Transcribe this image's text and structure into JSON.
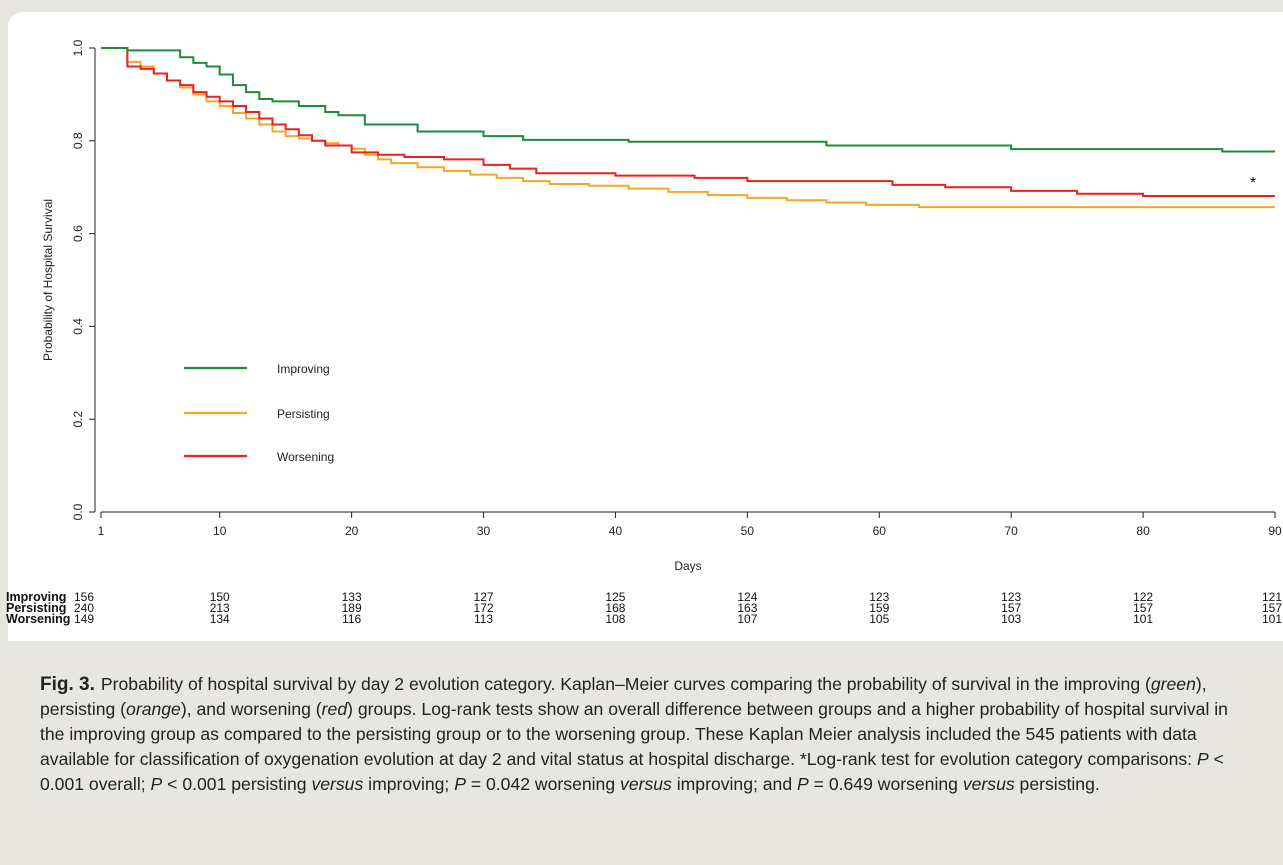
{
  "chart_data": {
    "type": "line",
    "xlabel": "Days",
    "ylabel": "Probability of Hospital Survival",
    "xlim": [
      1,
      90
    ],
    "ylim": [
      0,
      1
    ],
    "x_ticks": [
      1,
      10,
      20,
      30,
      40,
      50,
      60,
      70,
      80,
      90
    ],
    "y_ticks": [
      "0.0",
      "0.2",
      "0.4",
      "0.6",
      "0.8",
      "1.0"
    ],
    "legend_placement": "center-left",
    "annotation": "*",
    "series": [
      {
        "name": "Improving",
        "color": "#1e8a3c",
        "x": [
          1,
          3,
          7,
          8,
          9,
          10,
          11,
          12,
          13,
          14,
          16,
          18,
          19,
          21,
          25,
          30,
          33,
          41,
          56,
          70,
          86,
          90
        ],
        "y": [
          1.0,
          0.995,
          0.98,
          0.968,
          0.96,
          0.943,
          0.92,
          0.905,
          0.89,
          0.885,
          0.875,
          0.862,
          0.855,
          0.835,
          0.82,
          0.81,
          0.802,
          0.798,
          0.79,
          0.782,
          0.777,
          0.777
        ]
      },
      {
        "name": "Persisting",
        "color": "#f5a623",
        "x": [
          1,
          3,
          4,
          5,
          6,
          7,
          8,
          9,
          10,
          11,
          12,
          13,
          14,
          15,
          16,
          17,
          18,
          19,
          20,
          21,
          22,
          23,
          25,
          27,
          29,
          31,
          33,
          35,
          38,
          41,
          44,
          47,
          50,
          53,
          56,
          59,
          63,
          90
        ],
        "y": [
          1.0,
          0.97,
          0.96,
          0.945,
          0.93,
          0.915,
          0.9,
          0.885,
          0.875,
          0.86,
          0.848,
          0.835,
          0.82,
          0.81,
          0.805,
          0.8,
          0.795,
          0.79,
          0.783,
          0.77,
          0.76,
          0.752,
          0.743,
          0.735,
          0.727,
          0.72,
          0.713,
          0.707,
          0.703,
          0.697,
          0.69,
          0.683,
          0.677,
          0.672,
          0.667,
          0.662,
          0.657,
          0.657
        ]
      },
      {
        "name": "Worsening",
        "color": "#e8221e",
        "x": [
          1,
          3,
          4,
          5,
          6,
          7,
          8,
          9,
          10,
          11,
          12,
          13,
          14,
          15,
          16,
          17,
          18,
          20,
          22,
          24,
          27,
          30,
          32,
          34,
          40,
          46,
          50,
          61,
          65,
          70,
          75,
          80,
          90
        ],
        "y": [
          1.0,
          0.96,
          0.955,
          0.945,
          0.93,
          0.92,
          0.905,
          0.895,
          0.885,
          0.875,
          0.862,
          0.848,
          0.835,
          0.825,
          0.812,
          0.8,
          0.79,
          0.775,
          0.77,
          0.765,
          0.76,
          0.748,
          0.74,
          0.73,
          0.725,
          0.72,
          0.713,
          0.705,
          0.7,
          0.692,
          0.686,
          0.681,
          0.681
        ]
      }
    ],
    "risk_table": {
      "rows": [
        {
          "label": "Improving",
          "values": [
            "156",
            "150",
            "133",
            "127",
            "125",
            "124",
            "123",
            "123",
            "122",
            "121"
          ]
        },
        {
          "label": "Persisting",
          "values": [
            "240",
            "213",
            "189",
            "172",
            "168",
            "163",
            "159",
            "157",
            "157",
            "157"
          ]
        },
        {
          "label": "Worsening",
          "values": [
            "149",
            "134",
            "116",
            "113",
            "108",
            "107",
            "105",
            "103",
            "101",
            "101"
          ]
        }
      ]
    }
  },
  "caption": {
    "label": "Fig. 3.",
    "s1": "Probability of hospital survival by day 2 evolution category. Kaplan–Meier curves comparing the probability of survival in the improving (",
    "green": "green",
    "s2": "), persisting (",
    "orange": "orange",
    "s3": "), and worsening (",
    "red": "red",
    "s4": ") groups. Log-rank tests show an overall difference between groups and a higher probability of hospital survival in the improving group as compared to the persisting group or to the worsening group. These Kaplan Meier analysis included the 545 patients with data available for classification of oxygenation evolution at day 2 and vital status at hospital discharge. *Log-rank test for evolution category comparisons: ",
    "p": "P",
    "s5": " < 0.001 overall; ",
    "s6": " < 0.001 persisting ",
    "versus": "versus",
    "s7": " improving; ",
    "s8": " = 0.042 worsening ",
    "s9": " improving; and ",
    "s10": " = 0.649 worsening ",
    "s11": " persisting."
  }
}
